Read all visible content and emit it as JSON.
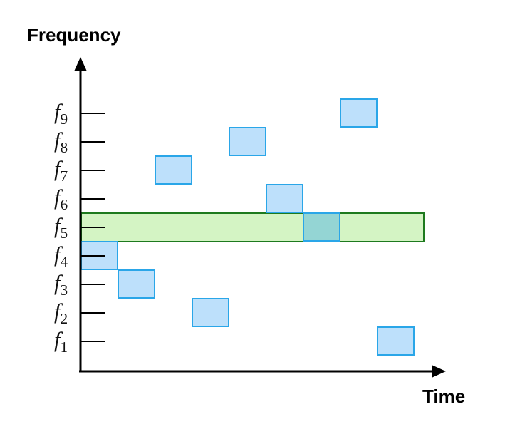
{
  "axes": {
    "y_title": "Frequency",
    "x_title": "Time"
  },
  "frequency_labels": [
    {
      "base": "f",
      "sub": "1"
    },
    {
      "base": "f",
      "sub": "2"
    },
    {
      "base": "f",
      "sub": "3"
    },
    {
      "base": "f",
      "sub": "4"
    },
    {
      "base": "f",
      "sub": "5"
    },
    {
      "base": "f",
      "sub": "6"
    },
    {
      "base": "f",
      "sub": "7"
    },
    {
      "base": "f",
      "sub": "8"
    },
    {
      "base": "f",
      "sub": "9"
    }
  ],
  "hops": [
    {
      "slot": 1,
      "channel": 4
    },
    {
      "slot": 2,
      "channel": 3
    },
    {
      "slot": 3,
      "channel": 7
    },
    {
      "slot": 4,
      "channel": 2
    },
    {
      "slot": 5,
      "channel": 8
    },
    {
      "slot": 6,
      "channel": 6
    },
    {
      "slot": 7,
      "channel": 5
    },
    {
      "slot": 8,
      "channel": 9
    },
    {
      "slot": 9,
      "channel": 1
    }
  ],
  "highlighted_channel": 5,
  "colors": {
    "axis": "#000000",
    "hop_fill": "#bde0fb",
    "hop_stroke": "#2aa6e8",
    "band_fill": "#d4f4c4",
    "band_stroke": "#1e7a1e",
    "overlap_fill": "#94d5d4"
  }
}
